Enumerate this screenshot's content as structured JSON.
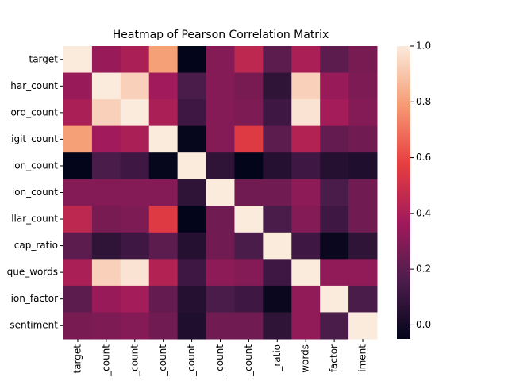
{
  "chart_data": {
    "type": "heatmap",
    "title": "Heatmap of Pearson Correlation Matrix",
    "y_categories": [
      "target",
      "har_count",
      "ord_count",
      "igit_count",
      "ion_count",
      "ion_count",
      "llar_count",
      "cap_ratio",
      "que_words",
      "ion_factor",
      "sentiment"
    ],
    "x_categories": [
      "target",
      "_count",
      "_count",
      "_count",
      "_count",
      "_count",
      "_count",
      "_ratio",
      "words",
      "factor",
      "iment"
    ],
    "z": [
      [
        1,
        0.35,
        0.4,
        0.8,
        -0.05,
        0.3,
        0.45,
        0.2,
        0.4,
        0.2,
        0.27
      ],
      [
        0.35,
        1,
        0.93,
        0.37,
        0.15,
        0.3,
        0.27,
        0.08,
        0.93,
        0.35,
        0.28
      ],
      [
        0.4,
        0.93,
        1,
        0.4,
        0.12,
        0.3,
        0.28,
        0.12,
        0.98,
        0.38,
        0.3
      ],
      [
        0.8,
        0.37,
        0.4,
        1,
        -0.04,
        0.3,
        0.55,
        0.2,
        0.42,
        0.22,
        0.25
      ],
      [
        -0.05,
        0.15,
        0.12,
        -0.04,
        1,
        0.08,
        -0.05,
        0.05,
        0.12,
        0.05,
        0.03
      ],
      [
        0.3,
        0.3,
        0.3,
        0.3,
        0.08,
        1,
        0.25,
        0.25,
        0.32,
        0.15,
        0.25
      ],
      [
        0.45,
        0.27,
        0.28,
        0.55,
        -0.05,
        0.25,
        1,
        0.15,
        0.3,
        0.12,
        0.25
      ],
      [
        0.2,
        0.08,
        0.12,
        0.2,
        0.05,
        0.25,
        0.15,
        1,
        0.12,
        -0.03,
        0.08
      ],
      [
        0.4,
        0.93,
        0.98,
        0.42,
        0.12,
        0.32,
        0.3,
        0.12,
        1,
        0.33,
        0.33
      ],
      [
        0.2,
        0.35,
        0.38,
        0.22,
        0.05,
        0.15,
        0.12,
        -0.03,
        0.33,
        1,
        0.15
      ],
      [
        0.27,
        0.28,
        0.3,
        0.25,
        0.03,
        0.25,
        0.25,
        0.08,
        0.33,
        0.15,
        1
      ]
    ],
    "zlim": [
      -0.05,
      1.0
    ],
    "zticks": [
      {
        "value": 0,
        "label": "0.0"
      },
      {
        "value": 0.2,
        "label": "0.2"
      },
      {
        "value": 0.4,
        "label": "0.4"
      },
      {
        "value": 0.6,
        "label": "0.6"
      },
      {
        "value": 0.8,
        "label": "0.8"
      },
      {
        "value": 1,
        "label": "1.0"
      }
    ],
    "colorscale": [
      "#03051a",
      "#4c1d4b",
      "#a11a5b",
      "#e83f3f",
      "#f69c73",
      "#faebdd"
    ]
  }
}
